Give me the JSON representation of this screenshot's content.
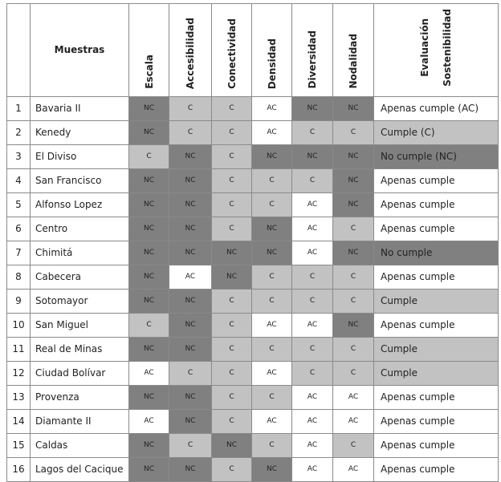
{
  "table": {
    "header": {
      "sample": "Muestras",
      "criteria": [
        "Escala",
        "Accesibilidad",
        "Conectividad",
        "Densidad",
        "Diversidad",
        "Nodalidad"
      ],
      "evaluation": [
        "Evaluación",
        "Sostenibilidad"
      ]
    },
    "rows": [
      {
        "n": "1",
        "name": "Bavaria II",
        "scores": [
          "NC",
          "C",
          "C",
          "AC",
          "NC",
          "NC"
        ],
        "evaluation": "Apenas cumple (AC)"
      },
      {
        "n": "2",
        "name": "Kenedy",
        "scores": [
          "NC",
          "C",
          "C",
          "AC",
          "C",
          "C"
        ],
        "evaluation": "Cumple (C)"
      },
      {
        "n": "3",
        "name": "El Diviso",
        "scores": [
          "C",
          "NC",
          "C",
          "NC",
          "NC",
          "NC"
        ],
        "evaluation": "No cumple (NC)"
      },
      {
        "n": "4",
        "name": "San Francisco",
        "scores": [
          "NC",
          "NC",
          "C",
          "C",
          "C",
          "NC"
        ],
        "evaluation": "Apenas cumple"
      },
      {
        "n": "5",
        "name": "Alfonso Lopez",
        "scores": [
          "NC",
          "NC",
          "C",
          "C",
          "AC",
          "NC"
        ],
        "evaluation": "Apenas cumple"
      },
      {
        "n": "6",
        "name": "Centro",
        "scores": [
          "NC",
          "NC",
          "C",
          "NC",
          "AC",
          "C"
        ],
        "evaluation": "Apenas cumple"
      },
      {
        "n": "7",
        "name": "Chimitá",
        "scores": [
          "NC",
          "NC",
          "NC",
          "NC",
          "AC",
          "NC"
        ],
        "evaluation": "No cumple"
      },
      {
        "n": "8",
        "name": "Cabecera",
        "scores": [
          "NC",
          "AC",
          "NC",
          "C",
          "C",
          "C"
        ],
        "evaluation": "Apenas cumple"
      },
      {
        "n": "9",
        "name": "Sotomayor",
        "scores": [
          "NC",
          "NC",
          "C",
          "C",
          "C",
          "C"
        ],
        "evaluation": "Cumple"
      },
      {
        "n": "10",
        "name": "San Miguel",
        "scores": [
          "C",
          "NC",
          "C",
          "AC",
          "AC",
          "NC"
        ],
        "evaluation": "Apenas cumple"
      },
      {
        "n": "11",
        "name": "Real de Minas",
        "scores": [
          "NC",
          "NC",
          "C",
          "C",
          "C",
          "C"
        ],
        "evaluation": "Cumple"
      },
      {
        "n": "12",
        "name": "Ciudad Bolívar",
        "scores": [
          "AC",
          "C",
          "C",
          "AC",
          "C",
          "C"
        ],
        "evaluation": "Cumple"
      },
      {
        "n": "13",
        "name": "Provenza",
        "scores": [
          "NC",
          "NC",
          "C",
          "C",
          "AC",
          "AC"
        ],
        "evaluation": "Apenas cumple"
      },
      {
        "n": "14",
        "name": "Diamante II",
        "scores": [
          "AC",
          "NC",
          "C",
          "AC",
          "AC",
          "AC"
        ],
        "evaluation": "Apenas cumple"
      },
      {
        "n": "15",
        "name": "Caldas",
        "scores": [
          "NC",
          "C",
          "NC",
          "C",
          "AC",
          "C"
        ],
        "evaluation": "Apenas cumple"
      },
      {
        "n": "16",
        "name": "Lagos del Cacique",
        "scores": [
          "NC",
          "NC",
          "C",
          "NC",
          "AC",
          "AC"
        ],
        "evaluation": "Apenas cumple"
      }
    ]
  }
}
